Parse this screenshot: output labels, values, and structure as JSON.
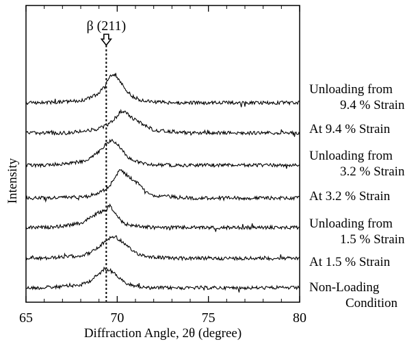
{
  "chart_data": {
    "type": "line",
    "title": "",
    "xlabel": "Diffraction Angle, 2θ (degree)",
    "ylabel": "Intensity",
    "xlim": [
      65,
      80
    ],
    "x_ticks": [
      "65",
      "70",
      "75",
      "80"
    ],
    "grid": false,
    "legend": "labels at right of each trace",
    "annotation": {
      "text": "β (211)",
      "x": 69.4,
      "marker": "dotted vertical line with down arrow"
    },
    "x": [
      65,
      66,
      67,
      68,
      68.5,
      69,
      69.3,
      69.6,
      69.9,
      70.2,
      70.5,
      70.8,
      71.2,
      71.6,
      72,
      73,
      74,
      75,
      76,
      77,
      78,
      79,
      80
    ],
    "series": [
      {
        "name": "Non-Loading Condition",
        "values": [
          0,
          0,
          0.05,
          0.1,
          0.25,
          0.5,
          0.7,
          0.65,
          0.5,
          0.3,
          0.15,
          0.1,
          0.05,
          0,
          0,
          0,
          0,
          0,
          0,
          0,
          0,
          0,
          0
        ]
      },
      {
        "name": "At 1.5 % Strain",
        "values": [
          0,
          0,
          0.05,
          0.1,
          0.2,
          0.4,
          0.6,
          0.75,
          0.8,
          0.65,
          0.45,
          0.3,
          0.15,
          0.08,
          0.05,
          0,
          0,
          0,
          0,
          0,
          0,
          0,
          0
        ]
      },
      {
        "name": "Unloading from 1.5 % Strain",
        "values": [
          0,
          0,
          0.05,
          0.15,
          0.35,
          0.55,
          0.6,
          0.8,
          0.5,
          0.25,
          0.12,
          0.08,
          0.05,
          0.02,
          0,
          0,
          0,
          0,
          0,
          0,
          0,
          0,
          0
        ]
      },
      {
        "name": "At 3.2 % Strain",
        "values": [
          0,
          0,
          0.02,
          0.05,
          0.1,
          0.2,
          0.3,
          0.45,
          0.8,
          1.05,
          0.85,
          0.7,
          0.5,
          0.25,
          0.1,
          0.05,
          0,
          0,
          0,
          0,
          0,
          0,
          0
        ]
      },
      {
        "name": "Unloading from 3.2 % Strain",
        "values": [
          0,
          0,
          0.05,
          0.12,
          0.25,
          0.5,
          0.7,
          0.9,
          0.85,
          0.6,
          0.35,
          0.2,
          0.1,
          0.05,
          0.02,
          0,
          0,
          0,
          0,
          0,
          0,
          0,
          0
        ]
      },
      {
        "name": "At 9.4 % Strain",
        "values": [
          0,
          0,
          0,
          0.05,
          0.1,
          0.15,
          0.25,
          0.35,
          0.55,
          0.8,
          0.75,
          0.55,
          0.4,
          0.25,
          0.1,
          0.05,
          0,
          0,
          0,
          0,
          0,
          0,
          0
        ]
      },
      {
        "name": "Unloading from 9.4 % Strain",
        "values": [
          0,
          0,
          0.03,
          0.08,
          0.18,
          0.35,
          0.6,
          0.95,
          1.0,
          0.75,
          0.45,
          0.25,
          0.12,
          0.06,
          0.03,
          0,
          0,
          0,
          0,
          0,
          0,
          0,
          0
        ]
      }
    ]
  }
}
